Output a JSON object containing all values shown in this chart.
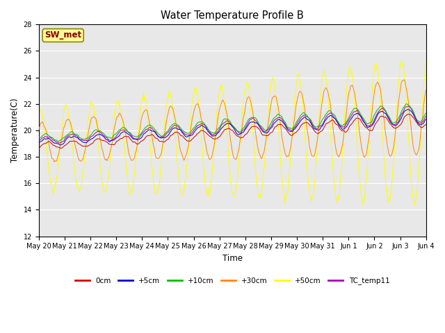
{
  "title": "Water Temperature Profile B",
  "xlabel": "Time",
  "ylabel": "Temperature(C)",
  "ylim": [
    12,
    28
  ],
  "yticks": [
    12,
    14,
    16,
    18,
    20,
    22,
    24,
    26,
    28
  ],
  "colors": {
    "0cm": "#cc0000",
    "+5cm": "#0000cc",
    "+10cm": "#00bb00",
    "+30cm": "#ff8800",
    "+50cm": "#ffff00",
    "TC_temp11": "#aa00aa"
  },
  "legend_labels": [
    "0cm",
    "+5cm",
    "+10cm",
    "+30cm",
    "+50cm",
    "TC_temp11"
  ],
  "sw_met_color": "#880000",
  "sw_met_bg": "#ffff99",
  "sw_met_border": "#888800",
  "plot_bg": "#e8e8e8",
  "fig_bg": "#ffffff"
}
